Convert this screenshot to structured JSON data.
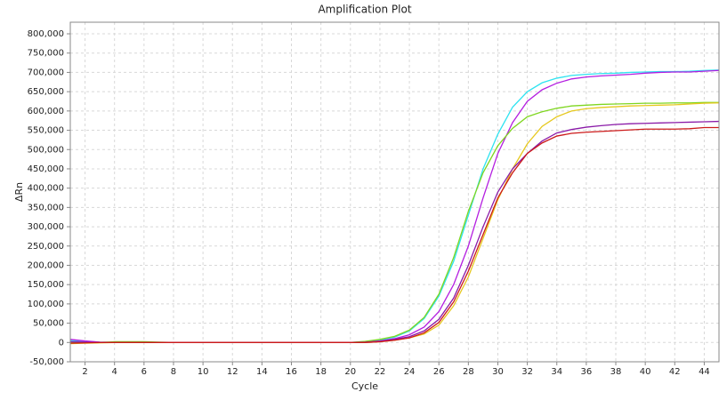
{
  "chart_data": {
    "type": "line",
    "title": "Amplification Plot",
    "xlabel": "Cycle",
    "ylabel": "ΔRn",
    "x": [
      1,
      2,
      3,
      4,
      5,
      6,
      7,
      8,
      9,
      10,
      11,
      12,
      13,
      14,
      15,
      16,
      17,
      18,
      19,
      20,
      21,
      22,
      23,
      24,
      25,
      26,
      27,
      28,
      29,
      30,
      31,
      32,
      33,
      34,
      35,
      36,
      37,
      38,
      39,
      40,
      41,
      42,
      43,
      44,
      45
    ],
    "series": [
      {
        "color": "#2ee3f0",
        "values": [
          5000,
          3000,
          1000,
          0,
          0,
          0,
          0,
          0,
          0,
          0,
          0,
          0,
          0,
          0,
          0,
          0,
          0,
          0,
          0,
          0,
          2000,
          6000,
          14000,
          30000,
          62000,
          120000,
          210000,
          330000,
          450000,
          540000,
          610000,
          650000,
          673000,
          685000,
          692000,
          695000,
          697000,
          698000,
          700000,
          701000,
          702000,
          702000,
          703000,
          705000,
          706000
        ]
      },
      {
        "color": "#b41ee0",
        "values": [
          8000,
          4000,
          1000,
          0,
          0,
          0,
          0,
          0,
          0,
          0,
          0,
          0,
          0,
          0,
          0,
          0,
          0,
          0,
          0,
          0,
          1000,
          4000,
          10000,
          20000,
          40000,
          80000,
          150000,
          250000,
          375000,
          490000,
          570000,
          625000,
          655000,
          672000,
          683000,
          688000,
          691000,
          693000,
          695000,
          698000,
          700000,
          701000,
          701000,
          703000,
          705000
        ]
      },
      {
        "color": "#7fd620",
        "values": [
          0,
          0,
          0,
          2000,
          2000,
          2000,
          1000,
          0,
          0,
          0,
          0,
          0,
          0,
          0,
          0,
          0,
          0,
          0,
          0,
          0,
          3000,
          8000,
          16000,
          32000,
          65000,
          125000,
          220000,
          340000,
          440000,
          510000,
          555000,
          585000,
          598000,
          607000,
          613000,
          615000,
          617000,
          618000,
          619000,
          620000,
          620000,
          621000,
          621000,
          622000,
          622000
        ]
      },
      {
        "color": "#e6c81e",
        "values": [
          -3000,
          -2000,
          -1000,
          0,
          0,
          0,
          0,
          0,
          0,
          0,
          0,
          0,
          0,
          0,
          0,
          0,
          0,
          0,
          0,
          0,
          0,
          2000,
          6000,
          12000,
          22000,
          45000,
          95000,
          170000,
          270000,
          370000,
          450000,
          515000,
          560000,
          585000,
          600000,
          606000,
          609000,
          611000,
          613000,
          614000,
          615000,
          616000,
          618000,
          620000,
          621000
        ]
      },
      {
        "color": "#8a1aa8",
        "values": [
          2000,
          1000,
          0,
          0,
          0,
          0,
          0,
          0,
          0,
          0,
          0,
          0,
          0,
          0,
          0,
          0,
          0,
          0,
          0,
          0,
          1000,
          3000,
          8000,
          15000,
          30000,
          60000,
          115000,
          200000,
          300000,
          390000,
          450000,
          490000,
          522000,
          543000,
          552000,
          558000,
          562000,
          565000,
          567000,
          568000,
          569000,
          570000,
          571000,
          572000,
          573000
        ]
      },
      {
        "color": "#cc1a1a",
        "values": [
          -2000,
          -1000,
          0,
          0,
          0,
          0,
          0,
          0,
          0,
          0,
          0,
          0,
          0,
          0,
          0,
          0,
          0,
          0,
          0,
          0,
          0,
          2000,
          6000,
          12000,
          25000,
          52000,
          105000,
          185000,
          280000,
          375000,
          440000,
          490000,
          517000,
          535000,
          542000,
          545000,
          547000,
          549000,
          551000,
          553000,
          553000,
          553000,
          554000,
          557000,
          557000
        ]
      }
    ],
    "xlim": [
      1,
      45
    ],
    "xticks": [
      2,
      4,
      6,
      8,
      10,
      12,
      14,
      16,
      18,
      20,
      22,
      24,
      26,
      28,
      30,
      32,
      34,
      36,
      38,
      40,
      42,
      44
    ],
    "ylim": [
      -50000,
      830000
    ],
    "yticks": [
      {
        "value": -50000,
        "label": "-50,000"
      },
      0,
      {
        "value": 50000,
        "label": "50,000"
      },
      {
        "value": 100000,
        "label": "100,000"
      },
      {
        "value": 150000,
        "label": "150,000"
      },
      {
        "value": 200000,
        "label": "200,000"
      },
      {
        "value": 250000,
        "label": "250,000"
      },
      {
        "value": 300000,
        "label": "300,000"
      },
      {
        "value": 350000,
        "label": "350,000"
      },
      {
        "value": 400000,
        "label": "400,000"
      },
      {
        "value": 450000,
        "label": "450,000"
      },
      {
        "value": 500000,
        "label": "500,000"
      },
      {
        "value": 550000,
        "label": "550,000"
      },
      {
        "value": 600000,
        "label": "600,000"
      },
      {
        "value": 650000,
        "label": "650,000"
      },
      {
        "value": 700000,
        "label": "700,000"
      },
      {
        "value": 750000,
        "label": "750,000"
      },
      {
        "value": 800000,
        "label": "800,000"
      }
    ],
    "grid": true
  }
}
